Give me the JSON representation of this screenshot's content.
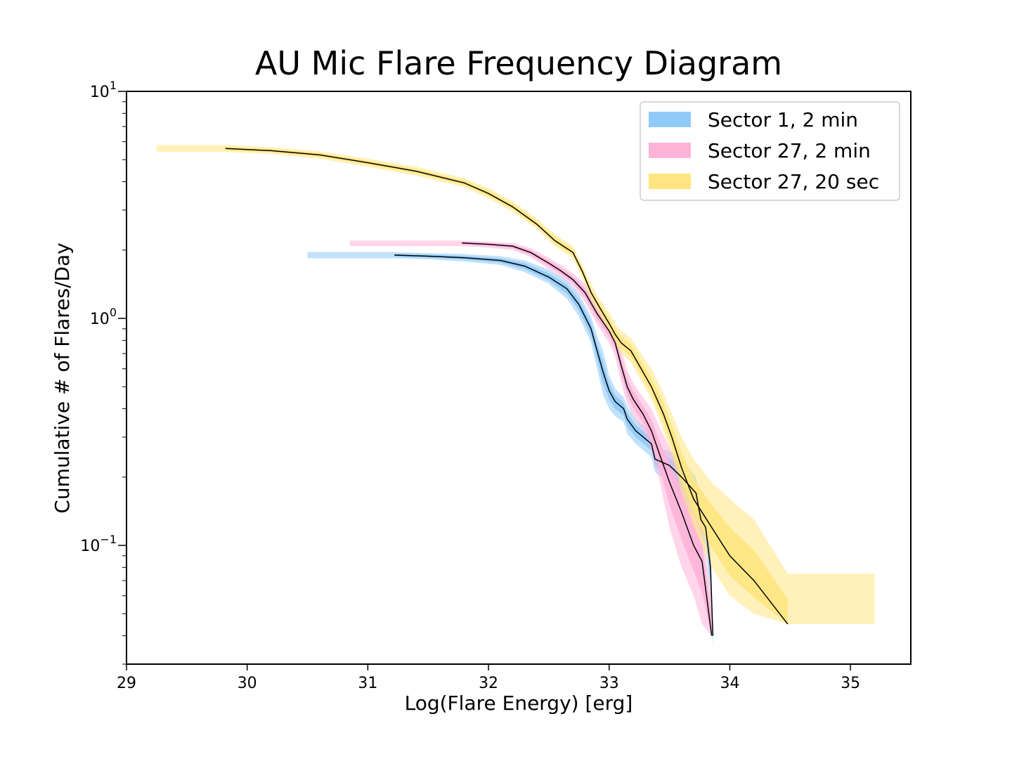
{
  "chart_data": {
    "type": "line",
    "title": "AU Mic Flare Frequency Diagram",
    "xlabel": "Log(Flare Energy) [erg]",
    "ylabel": "Cumulative # of Flares/Day",
    "xlim": [
      29,
      35.5
    ],
    "ylim": [
      0.03,
      10
    ],
    "yscale": "log",
    "x_ticks": [
      "29",
      "30",
      "31",
      "32",
      "33",
      "34",
      "35"
    ],
    "y_ticks": [
      {
        "base": "10",
        "exp": "1",
        "value": 10
      },
      {
        "base": "10",
        "exp": "0",
        "value": 1
      },
      {
        "base": "10",
        "exp": "−1",
        "value": 0.1
      }
    ],
    "legend_position": "top-right",
    "series": [
      {
        "name": "Sector 1, 2 min",
        "color": "#1E88E5",
        "fill_color": "#90CAF9",
        "x": [
          31.22,
          31.5,
          31.8,
          32.1,
          32.3,
          32.5,
          32.65,
          32.75,
          32.85,
          32.9,
          32.95,
          33.0,
          33.05,
          33.12,
          33.15,
          33.22,
          33.35,
          33.38,
          33.5,
          33.6,
          33.72,
          33.76,
          33.8,
          33.84,
          33.86
        ],
        "y": [
          1.9,
          1.88,
          1.85,
          1.8,
          1.7,
          1.52,
          1.35,
          1.15,
          0.9,
          0.72,
          0.58,
          0.48,
          0.43,
          0.4,
          0.36,
          0.32,
          0.28,
          0.24,
          0.225,
          0.2,
          0.17,
          0.13,
          0.12,
          0.08,
          0.04
        ],
        "lower": [
          1.84,
          1.82,
          1.78,
          1.72,
          1.6,
          1.42,
          1.22,
          1.02,
          0.78,
          0.6,
          0.46,
          0.4,
          0.37,
          0.35,
          0.31,
          0.28,
          0.245,
          0.21,
          0.19,
          0.16,
          0.13,
          0.11,
          0.1,
          0.06,
          0.035
        ],
        "upper": [
          1.96,
          1.94,
          1.92,
          1.88,
          1.8,
          1.64,
          1.47,
          1.28,
          1.02,
          0.84,
          0.72,
          0.56,
          0.49,
          0.45,
          0.41,
          0.36,
          0.315,
          0.27,
          0.26,
          0.24,
          0.2,
          0.16,
          0.15,
          0.1,
          0.045
        ],
        "band_x_start": 30.5
      },
      {
        "name": "Sector 27, 2 min",
        "color": "#E91E8C",
        "fill_color": "#FFB3D9",
        "x": [
          31.78,
          32.0,
          32.2,
          32.35,
          32.5,
          32.6,
          32.7,
          32.8,
          32.9,
          33.0,
          33.05,
          33.1,
          33.15,
          33.2,
          33.28,
          33.35,
          33.42,
          33.5,
          33.6,
          33.7,
          33.77,
          33.85
        ],
        "y": [
          2.15,
          2.12,
          2.08,
          1.95,
          1.75,
          1.62,
          1.48,
          1.3,
          1.05,
          0.88,
          0.78,
          0.62,
          0.5,
          0.44,
          0.38,
          0.32,
          0.25,
          0.19,
          0.14,
          0.1,
          0.085,
          0.04
        ],
        "lower": [
          2.08,
          2.05,
          2.0,
          1.86,
          1.65,
          1.52,
          1.38,
          1.18,
          0.94,
          0.78,
          0.68,
          0.52,
          0.42,
          0.37,
          0.32,
          0.26,
          0.19,
          0.12,
          0.08,
          0.06,
          0.045,
          0.04
        ],
        "upper": [
          2.2,
          2.18,
          2.15,
          2.04,
          1.85,
          1.72,
          1.58,
          1.42,
          1.16,
          0.98,
          0.88,
          0.73,
          0.59,
          0.52,
          0.45,
          0.4,
          0.33,
          0.27,
          0.22,
          0.16,
          0.12,
          0.06
        ],
        "band_x_start": 30.85
      },
      {
        "name": "Sector 27, 20 sec",
        "color": "#FDD835",
        "fill_color": "#FFE57F",
        "x": [
          29.82,
          30.2,
          30.6,
          31.0,
          31.4,
          31.8,
          32.0,
          32.2,
          32.4,
          32.55,
          32.7,
          32.78,
          32.85,
          32.92,
          33.0,
          33.05,
          33.1,
          33.18,
          33.25,
          33.35,
          33.45,
          33.52,
          33.6,
          33.7,
          33.85,
          34.0,
          34.2,
          34.48
        ],
        "y": [
          5.6,
          5.48,
          5.25,
          4.85,
          4.45,
          3.95,
          3.55,
          3.1,
          2.6,
          2.2,
          1.95,
          1.6,
          1.3,
          1.12,
          0.95,
          0.85,
          0.78,
          0.72,
          0.62,
          0.5,
          0.38,
          0.3,
          0.22,
          0.16,
          0.12,
          0.09,
          0.07,
          0.045
        ],
        "lower": [
          5.4,
          5.3,
          5.05,
          4.65,
          4.25,
          3.78,
          3.38,
          2.95,
          2.48,
          2.08,
          1.84,
          1.5,
          1.2,
          1.04,
          0.86,
          0.77,
          0.7,
          0.64,
          0.55,
          0.44,
          0.32,
          0.25,
          0.17,
          0.12,
          0.08,
          0.06,
          0.05,
          0.045
        ],
        "upper": [
          5.8,
          5.68,
          5.45,
          5.05,
          4.65,
          4.15,
          3.75,
          3.28,
          2.75,
          2.35,
          2.08,
          1.72,
          1.42,
          1.22,
          1.06,
          0.95,
          0.88,
          0.82,
          0.72,
          0.6,
          0.47,
          0.38,
          0.3,
          0.24,
          0.19,
          0.16,
          0.13,
          0.075
        ],
        "band_x_start": 29.25,
        "band_x_end": 35.2
      }
    ]
  }
}
